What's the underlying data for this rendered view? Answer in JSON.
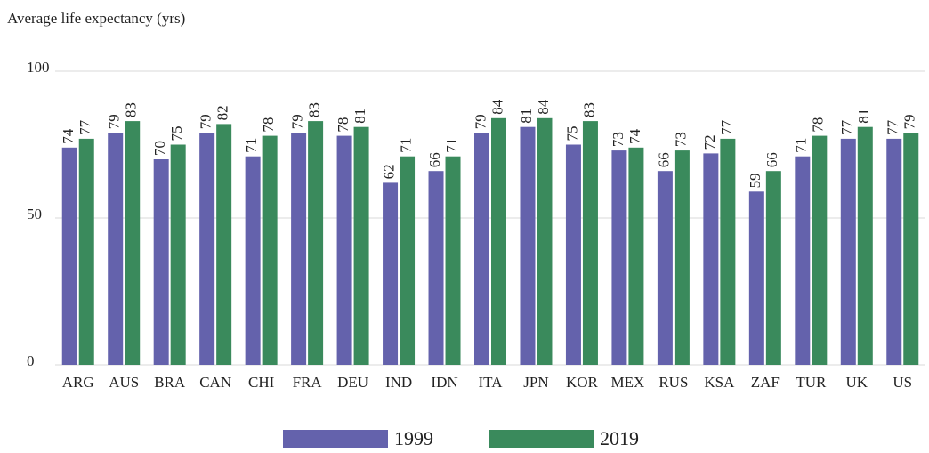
{
  "chart_data": {
    "type": "bar",
    "title": "Average life expectancy (yrs)",
    "categories": [
      "ARG",
      "AUS",
      "BRA",
      "CAN",
      "CHI",
      "FRA",
      "DEU",
      "IND",
      "IDN",
      "ITA",
      "JPN",
      "KOR",
      "MEX",
      "RUS",
      "KSA",
      "ZAF",
      "TUR",
      "UK",
      "US"
    ],
    "series": [
      {
        "name": "1999",
        "color": "#6462ac",
        "values": [
          74,
          79,
          70,
          79,
          71,
          79,
          78,
          62,
          66,
          79,
          81,
          75,
          73,
          66,
          72,
          59,
          71,
          77,
          77
        ]
      },
      {
        "name": "2019",
        "color": "#3a8a5c",
        "values": [
          77,
          83,
          75,
          82,
          78,
          83,
          81,
          71,
          71,
          84,
          84,
          83,
          74,
          73,
          77,
          66,
          78,
          81,
          79
        ]
      }
    ],
    "ylim": [
      0,
      100
    ],
    "yticks": [
      0,
      50,
      100
    ],
    "grid": true,
    "legend": "bottom"
  }
}
